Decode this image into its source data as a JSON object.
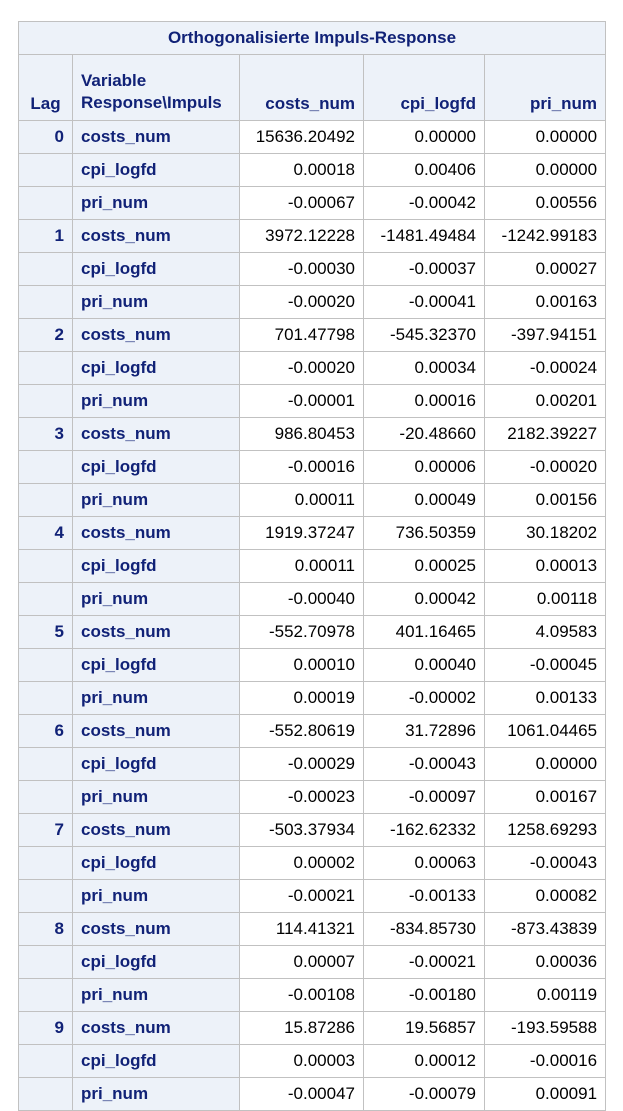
{
  "table": {
    "title": "Orthogonalisierte Impuls-Response",
    "headers": {
      "lag": "Lag",
      "variable_line1": "Variable",
      "variable_line2": "Response\\Impuls",
      "impulses": [
        "costs_num",
        "cpi_logfd",
        "pri_num"
      ]
    },
    "lags": [
      {
        "lag": "0",
        "rows": [
          {
            "variable": "costs_num",
            "values": [
              "15636.20492",
              "0.00000",
              "0.00000"
            ]
          },
          {
            "variable": "cpi_logfd",
            "values": [
              "0.00018",
              "0.00406",
              "0.00000"
            ]
          },
          {
            "variable": "pri_num",
            "values": [
              "-0.00067",
              "-0.00042",
              "0.00556"
            ]
          }
        ]
      },
      {
        "lag": "1",
        "rows": [
          {
            "variable": "costs_num",
            "values": [
              "3972.12228",
              "-1481.49484",
              "-1242.99183"
            ]
          },
          {
            "variable": "cpi_logfd",
            "values": [
              "-0.00030",
              "-0.00037",
              "0.00027"
            ]
          },
          {
            "variable": "pri_num",
            "values": [
              "-0.00020",
              "-0.00041",
              "0.00163"
            ]
          }
        ]
      },
      {
        "lag": "2",
        "rows": [
          {
            "variable": "costs_num",
            "values": [
              "701.47798",
              "-545.32370",
              "-397.94151"
            ]
          },
          {
            "variable": "cpi_logfd",
            "values": [
              "-0.00020",
              "0.00034",
              "-0.00024"
            ]
          },
          {
            "variable": "pri_num",
            "values": [
              "-0.00001",
              "0.00016",
              "0.00201"
            ]
          }
        ]
      },
      {
        "lag": "3",
        "rows": [
          {
            "variable": "costs_num",
            "values": [
              "986.80453",
              "-20.48660",
              "2182.39227"
            ]
          },
          {
            "variable": "cpi_logfd",
            "values": [
              "-0.00016",
              "0.00006",
              "-0.00020"
            ]
          },
          {
            "variable": "pri_num",
            "values": [
              "0.00011",
              "0.00049",
              "0.00156"
            ]
          }
        ]
      },
      {
        "lag": "4",
        "rows": [
          {
            "variable": "costs_num",
            "values": [
              "1919.37247",
              "736.50359",
              "30.18202"
            ]
          },
          {
            "variable": "cpi_logfd",
            "values": [
              "0.00011",
              "0.00025",
              "0.00013"
            ]
          },
          {
            "variable": "pri_num",
            "values": [
              "-0.00040",
              "0.00042",
              "0.00118"
            ]
          }
        ]
      },
      {
        "lag": "5",
        "rows": [
          {
            "variable": "costs_num",
            "values": [
              "-552.70978",
              "401.16465",
              "4.09583"
            ]
          },
          {
            "variable": "cpi_logfd",
            "values": [
              "0.00010",
              "0.00040",
              "-0.00045"
            ]
          },
          {
            "variable": "pri_num",
            "values": [
              "0.00019",
              "-0.00002",
              "0.00133"
            ]
          }
        ]
      },
      {
        "lag": "6",
        "rows": [
          {
            "variable": "costs_num",
            "values": [
              "-552.80619",
              "31.72896",
              "1061.04465"
            ]
          },
          {
            "variable": "cpi_logfd",
            "values": [
              "-0.00029",
              "-0.00043",
              "0.00000"
            ]
          },
          {
            "variable": "pri_num",
            "values": [
              "-0.00023",
              "-0.00097",
              "0.00167"
            ]
          }
        ]
      },
      {
        "lag": "7",
        "rows": [
          {
            "variable": "costs_num",
            "values": [
              "-503.37934",
              "-162.62332",
              "1258.69293"
            ]
          },
          {
            "variable": "cpi_logfd",
            "values": [
              "0.00002",
              "0.00063",
              "-0.00043"
            ]
          },
          {
            "variable": "pri_num",
            "values": [
              "-0.00021",
              "-0.00133",
              "0.00082"
            ]
          }
        ]
      },
      {
        "lag": "8",
        "rows": [
          {
            "variable": "costs_num",
            "values": [
              "114.41321",
              "-834.85730",
              "-873.43839"
            ]
          },
          {
            "variable": "cpi_logfd",
            "values": [
              "0.00007",
              "-0.00021",
              "0.00036"
            ]
          },
          {
            "variable": "pri_num",
            "values": [
              "-0.00108",
              "-0.00180",
              "0.00119"
            ]
          }
        ]
      },
      {
        "lag": "9",
        "rows": [
          {
            "variable": "costs_num",
            "values": [
              "15.87286",
              "19.56857",
              "-193.59588"
            ]
          },
          {
            "variable": "cpi_logfd",
            "values": [
              "0.00003",
              "0.00012",
              "-0.00016"
            ]
          },
          {
            "variable": "pri_num",
            "values": [
              "-0.00047",
              "-0.00079",
              "0.00091"
            ]
          }
        ]
      }
    ]
  }
}
